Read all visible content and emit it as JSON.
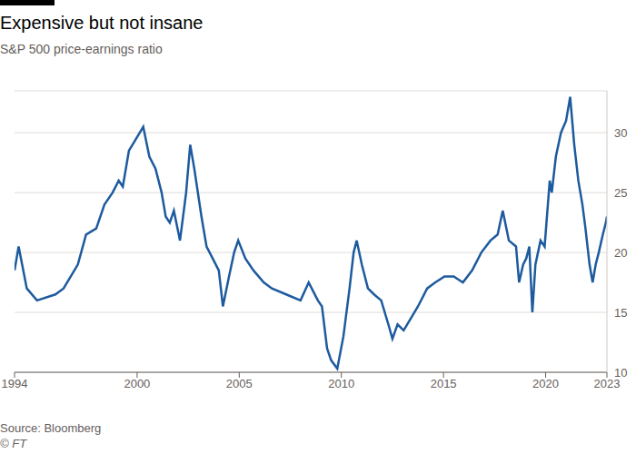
{
  "chart_data": {
    "type": "line",
    "title": "Expensive but not insane",
    "subtitle": "S&P 500 price-earnings ratio",
    "source": "Source: Bloomberg",
    "copyright": "© FT",
    "color": "#1d5a9e",
    "grid": true,
    "xlim": [
      1994,
      2023
    ],
    "xticks": [
      1994,
      2000,
      2005,
      2010,
      2015,
      2020,
      2023
    ],
    "ylim": [
      10,
      33.5
    ],
    "yticks": [
      10,
      15,
      20,
      25,
      30
    ],
    "x": [
      1994.0,
      1994.2,
      1994.6,
      1995.1,
      1996.0,
      1996.4,
      1997.1,
      1997.5,
      1998.0,
      1998.4,
      1998.8,
      1999.1,
      1999.3,
      1999.6,
      1999.95,
      2000.3,
      2000.6,
      2000.9,
      2001.2,
      2001.4,
      2001.6,
      2001.8,
      2002.1,
      2002.4,
      2002.6,
      2002.8,
      2003.15,
      2003.4,
      2003.7,
      2004.0,
      2004.2,
      2004.5,
      2004.75,
      2004.95,
      2005.3,
      2005.7,
      2006.2,
      2006.6,
      2007.3,
      2008.0,
      2008.4,
      2008.85,
      2009.05,
      2009.3,
      2009.5,
      2009.8,
      2010.1,
      2010.4,
      2010.6,
      2010.75,
      2011.0,
      2011.3,
      2011.6,
      2011.95,
      2012.3,
      2012.5,
      2012.75,
      2013.05,
      2013.4,
      2013.75,
      2014.2,
      2014.6,
      2015.05,
      2015.5,
      2015.95,
      2016.4,
      2016.85,
      2017.3,
      2017.65,
      2017.9,
      2018.2,
      2018.55,
      2018.7,
      2018.9,
      2019.05,
      2019.2,
      2019.35,
      2019.5,
      2019.75,
      2019.95,
      2020.2,
      2020.3,
      2020.5,
      2020.75,
      2021.0,
      2021.2,
      2021.4,
      2021.6,
      2021.8,
      2021.95,
      2022.15,
      2022.3,
      2022.45,
      2022.6,
      2022.8,
      2022.95,
      2023.0
    ],
    "values": [
      18.5,
      20.5,
      17,
      16,
      16.5,
      17,
      19,
      21.5,
      22,
      24,
      25,
      26,
      25.5,
      28.5,
      29.5,
      30.5,
      28,
      27,
      25,
      23,
      22.5,
      23.5,
      21,
      25,
      29,
      27,
      23,
      20.5,
      19.5,
      18.5,
      15.5,
      18,
      20,
      21,
      19.5,
      18.5,
      17.5,
      17,
      16.5,
      16,
      17.5,
      16,
      15.5,
      12,
      11,
      10.3,
      13,
      17,
      20,
      21,
      19,
      17,
      16.5,
      16,
      14,
      12.8,
      14,
      13.5,
      14.5,
      15.5,
      17,
      17.5,
      18,
      18,
      17.5,
      18.5,
      20,
      21,
      21.5,
      23.5,
      21,
      20.5,
      17.5,
      19,
      19.5,
      20.5,
      15,
      19,
      21,
      20.5,
      26,
      25,
      28,
      30,
      31,
      33,
      29,
      26,
      24,
      22,
      19,
      17.5,
      19,
      20,
      21.5,
      22.5,
      23
    ]
  }
}
